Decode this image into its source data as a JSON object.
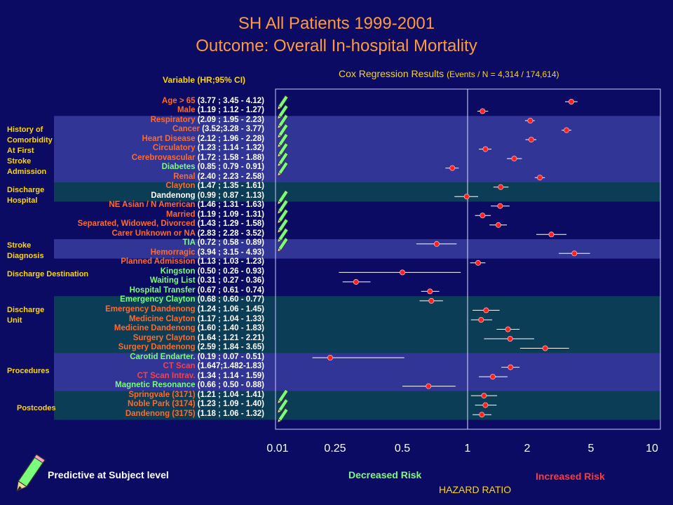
{
  "title_line1": "SH All Patients 1999-2001",
  "title_line2": "Outcome: Overall In-hospital Mortality",
  "variable_header": "Variable (HR;95% CI)",
  "chart_header": "Cox Regression Results",
  "chart_header_sub": "(Events / N = 4,314 / 174,614)",
  "groups": [
    {
      "label": "History of Comorbidity At First Stroke Admission"
    },
    {
      "label": "Discharge Hospital"
    },
    {
      "label": "Stroke Diagnosis"
    },
    {
      "label": "Discharge Destination"
    },
    {
      "label": "Discharge Unit"
    },
    {
      "label": "Procedures"
    },
    {
      "label": "Postcodes"
    }
  ],
  "footer": {
    "legend_text": "Predictive at Subject level",
    "decreased": "Decreased Risk",
    "increased": "Increased Risk",
    "xlabel": "HAZARD RATIO"
  },
  "colors": {
    "background": "#0b0b63",
    "band_blue": "#303596",
    "band_teal": "#0c3d57",
    "title": "#ff9a3c",
    "header": "#ffd700",
    "label_orange": "#ff6a2a",
    "label_green": "#7cfc7c",
    "label_white": "#ffffff",
    "label_red": "#ff4040",
    "marker": "#ff2020"
  },
  "chart_data": {
    "type": "forest",
    "xscale": "log",
    "xlabel": "HAZARD RATIO",
    "xticks": [
      "0.01",
      "0.25",
      "0.5",
      "1",
      "2",
      "5",
      "10"
    ],
    "reference_line": 1,
    "rows": [
      {
        "name": "Age > 65",
        "ci": "(3.77 ; 3.45 - 4.12)",
        "hr": 3.77,
        "lo": 3.45,
        "hi": 4.12,
        "color": "orange",
        "predictive": true,
        "band": "none"
      },
      {
        "name": "Male",
        "ci": "(1.19 ; 1.12 - 1.27)",
        "hr": 1.19,
        "lo": 1.12,
        "hi": 1.27,
        "color": "orange",
        "predictive": true,
        "band": "none"
      },
      {
        "name": "Respiratory",
        "ci": "(2.09 ; 1.95 - 2.23)",
        "hr": 2.09,
        "lo": 1.95,
        "hi": 2.23,
        "color": "orange",
        "predictive": true,
        "band": "blue"
      },
      {
        "name": "Cancer",
        "ci": "(3.52;3.28 - 3.77)",
        "hr": 3.52,
        "lo": 3.28,
        "hi": 3.77,
        "color": "orange",
        "predictive": true,
        "band": "blue"
      },
      {
        "name": "Heart Disease",
        "ci": "(2.12 ; 1.96 - 2.28)",
        "hr": 2.12,
        "lo": 1.96,
        "hi": 2.28,
        "color": "orange",
        "predictive": true,
        "band": "blue"
      },
      {
        "name": "Circulatory",
        "ci": "(1.23 ; 1.14 - 1.32)",
        "hr": 1.23,
        "lo": 1.14,
        "hi": 1.32,
        "color": "orange",
        "predictive": true,
        "band": "blue"
      },
      {
        "name": "Cerebrovascular",
        "ci": "(1.72 ; 1.58 - 1.88)",
        "hr": 1.72,
        "lo": 1.58,
        "hi": 1.88,
        "color": "orange",
        "predictive": true,
        "band": "blue"
      },
      {
        "name": "Diabetes",
        "ci": "(0.85 ; 0.79 - 0.91)",
        "hr": 0.85,
        "lo": 0.79,
        "hi": 0.91,
        "color": "green",
        "predictive": true,
        "band": "blue"
      },
      {
        "name": "Renal",
        "ci": "(2.40 ; 2.23 - 2.58)",
        "hr": 2.4,
        "lo": 2.23,
        "hi": 2.58,
        "color": "orange",
        "predictive": false,
        "band": "blue"
      },
      {
        "name": "Clayton",
        "ci": "(1.47 ;  1.35 - 1.61)",
        "hr": 1.47,
        "lo": 1.35,
        "hi": 1.61,
        "color": "orange",
        "predictive": false,
        "band": "teal"
      },
      {
        "name": "Dandenong",
        "ci": "(0.99 ; 0.87 - 1.13)",
        "hr": 0.99,
        "lo": 0.87,
        "hi": 1.13,
        "color": "white",
        "predictive": true,
        "band": "teal"
      },
      {
        "name": "NE Asian / N American",
        "ci": "(1.46 ; 1.31 - 1.63)",
        "hr": 1.46,
        "lo": 1.31,
        "hi": 1.63,
        "color": "orange",
        "predictive": true,
        "band": "none"
      },
      {
        "name": "Married",
        "ci": "(1.19 ; 1.09 - 1.31)",
        "hr": 1.19,
        "lo": 1.09,
        "hi": 1.31,
        "color": "orange",
        "predictive": true,
        "band": "none"
      },
      {
        "name": "Separated, Widowed, Divorced",
        "ci": "(1.43 ; 1.29 - 1.58)",
        "hr": 1.43,
        "lo": 1.29,
        "hi": 1.58,
        "color": "orange",
        "predictive": true,
        "band": "none"
      },
      {
        "name": "Carer Unknown or NA",
        "ci": "(2.83 ; 2.28 - 3.52)",
        "hr": 2.83,
        "lo": 2.28,
        "hi": 3.52,
        "color": "orange",
        "predictive": true,
        "band": "none"
      },
      {
        "name": "TIA",
        "ci": "(0.72 ; 0.58 - 0.89)",
        "hr": 0.72,
        "lo": 0.58,
        "hi": 0.89,
        "color": "green",
        "predictive": true,
        "band": "blue"
      },
      {
        "name": "Hemorragic",
        "ci": "(3.94 ; 3.15 - 4.93)",
        "hr": 3.94,
        "lo": 3.15,
        "hi": 4.93,
        "color": "orange",
        "predictive": false,
        "band": "blue"
      },
      {
        "name": "Planned Admission",
        "ci": "(1.13 ; 1.03 - 1.23)",
        "hr": 1.13,
        "lo": 1.03,
        "hi": 1.23,
        "color": "orange",
        "predictive": false,
        "band": "none"
      },
      {
        "name": "Kingston",
        "ci": "(0.50 ; 0.26 - 0.93)",
        "hr": 0.5,
        "lo": 0.26,
        "hi": 0.93,
        "color": "green",
        "predictive": false,
        "band": "none"
      },
      {
        "name": "Waiting List",
        "ci": "(0.31 ; 0.27 - 0.36)",
        "hr": 0.31,
        "lo": 0.27,
        "hi": 0.36,
        "color": "green",
        "predictive": false,
        "band": "none"
      },
      {
        "name": "Hospital Transfer",
        "ci": "(0.67 ; 0.61 - 0.74)",
        "hr": 0.67,
        "lo": 0.61,
        "hi": 0.74,
        "color": "green",
        "predictive": false,
        "band": "none"
      },
      {
        "name": "Emergency Clayton",
        "ci": "(0.68 ; 0.60 - 0.77)",
        "hr": 0.68,
        "lo": 0.6,
        "hi": 0.77,
        "color": "green",
        "predictive": false,
        "band": "teal"
      },
      {
        "name": "Emergency Dandenong",
        "ci": "(1.24 ; 1.06 - 1.45)",
        "hr": 1.24,
        "lo": 1.06,
        "hi": 1.45,
        "color": "orange",
        "predictive": false,
        "band": "teal"
      },
      {
        "name": "Medicine Clayton",
        "ci": "(1.17 ; 1.04 - 1.33)",
        "hr": 1.17,
        "lo": 1.04,
        "hi": 1.33,
        "color": "orange",
        "predictive": false,
        "band": "teal"
      },
      {
        "name": "Medicine Dandenong",
        "ci": "(1.60 ; 1.40 - 1.83)",
        "hr": 1.6,
        "lo": 1.4,
        "hi": 1.83,
        "color": "orange",
        "predictive": false,
        "band": "teal"
      },
      {
        "name": "Surgery Clayton",
        "ci": "(1.64 ; 1.21 - 2.21)",
        "hr": 1.64,
        "lo": 1.21,
        "hi": 2.21,
        "color": "orange",
        "predictive": false,
        "band": "teal"
      },
      {
        "name": "Surgery Dandenong",
        "ci": "(2.59 ; 1.84 - 3.65)",
        "hr": 2.59,
        "lo": 1.84,
        "hi": 3.65,
        "color": "orange",
        "predictive": false,
        "band": "teal"
      },
      {
        "name": "Carotid Endarter.",
        "ci": "(0.19 ; 0.07 - 0.51)",
        "hr": 0.19,
        "lo": 0.07,
        "hi": 0.51,
        "color": "green",
        "predictive": false,
        "band": "blue"
      },
      {
        "name": "CT Scan",
        "ci": "(1.647;1.482-1.83)",
        "hr": 1.647,
        "lo": 1.482,
        "hi": 1.83,
        "color": "red",
        "predictive": false,
        "band": "blue"
      },
      {
        "name": "CT Scan Intrav.",
        "ci": "(1.34 ; 1.14 - 1.59)",
        "hr": 1.34,
        "lo": 1.14,
        "hi": 1.59,
        "color": "red",
        "predictive": false,
        "band": "blue"
      },
      {
        "name": "Magnetic Resonance",
        "ci": "(0.66 ; 0.50 - 0.88)",
        "hr": 0.66,
        "lo": 0.5,
        "hi": 0.88,
        "color": "green",
        "predictive": false,
        "band": "blue"
      },
      {
        "name": "Springvale (3171)",
        "ci": "(1.21 ; 1.04 - 1.41)",
        "hr": 1.21,
        "lo": 1.04,
        "hi": 1.41,
        "color": "orange",
        "predictive": true,
        "band": "teal"
      },
      {
        "name": "Noble Park (3174)",
        "ci": "(1.23 ; 1.09 - 1.40)",
        "hr": 1.23,
        "lo": 1.09,
        "hi": 1.4,
        "color": "orange",
        "predictive": true,
        "band": "teal"
      },
      {
        "name": "Dandenong (3175)",
        "ci": "(1.18 ; 1.06 - 1.32)",
        "hr": 1.18,
        "lo": 1.06,
        "hi": 1.32,
        "color": "orange",
        "predictive": true,
        "band": "teal"
      }
    ]
  }
}
